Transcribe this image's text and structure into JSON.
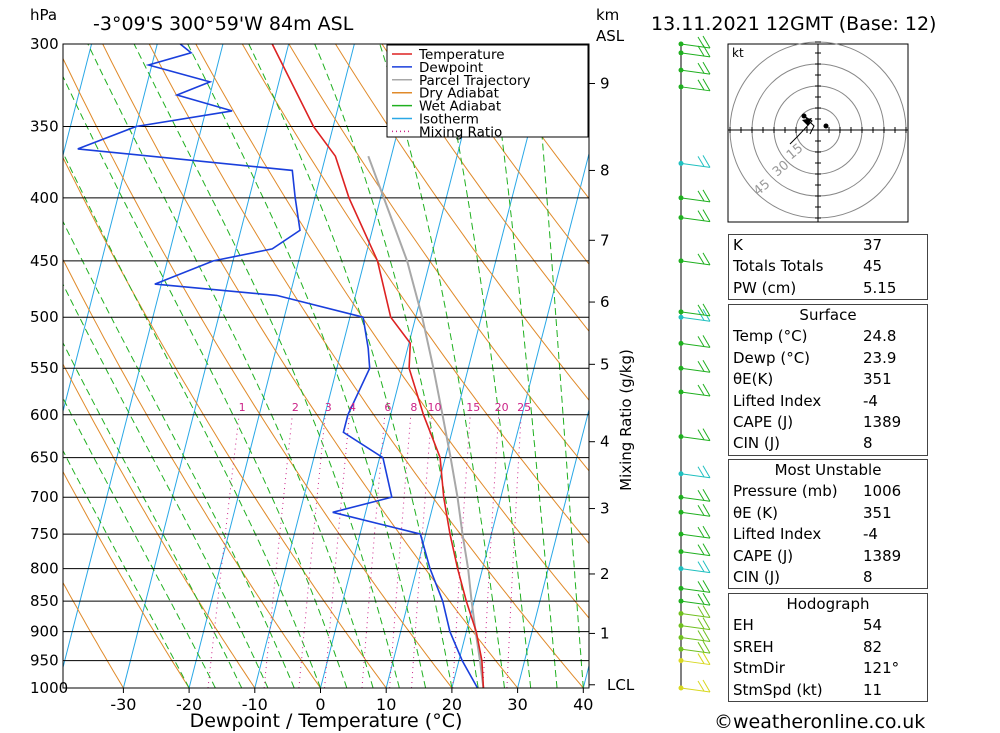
{
  "header": {
    "location": "-3°09'S  300°59'W  84m  ASL",
    "datetime": "13.11.2021  12GMT  (Base: 12)",
    "left_unit": "hPa",
    "right_unit_top": "km",
    "right_unit_bottom": "ASL"
  },
  "chart_data": {
    "type": "skew-t",
    "xlabel": "Dewpoint / Temperature (°C)",
    "right_axis_label": "Mixing Ratio (g/kg)",
    "x_ticks": [
      -30,
      -20,
      -10,
      0,
      10,
      20,
      30,
      40
    ],
    "pressure_levels": [
      300,
      350,
      400,
      450,
      500,
      550,
      600,
      650,
      700,
      750,
      800,
      850,
      900,
      950,
      1000
    ],
    "height_ticks_km": [
      {
        "label": "9",
        "p": 323
      },
      {
        "label": "8",
        "p": 380
      },
      {
        "label": "7",
        "p": 433
      },
      {
        "label": "6",
        "p": 486
      },
      {
        "label": "5",
        "p": 546
      },
      {
        "label": "4",
        "p": 631
      },
      {
        "label": "3",
        "p": 715
      },
      {
        "label": "2",
        "p": 808
      },
      {
        "label": "1",
        "p": 903
      },
      {
        "label": "LCL",
        "p": 994
      }
    ],
    "mixing_ratio_labels": [
      "1",
      "2",
      "3",
      "4",
      "6",
      "8",
      "10",
      "15",
      "20",
      "25"
    ],
    "legend": [
      "Temperature",
      "Dewpoint",
      "Parcel Trajectory",
      "Dry Adiabat",
      "Wet Adiabat",
      "Isotherm",
      "Mixing Ratio"
    ],
    "colors": {
      "temperature": "#dd2222",
      "dewpoint": "#1a3fdc",
      "parcel": "#a8a8a8",
      "dry_adiabat": "#e08a2a",
      "wet_adiabat": "#20b020",
      "isotherm": "#2aa8e6",
      "mixing_ratio": "#cc2288"
    },
    "temperature": [
      {
        "p": 1000,
        "t": 24.8
      },
      {
        "p": 950,
        "t": 23.5
      },
      {
        "p": 900,
        "t": 21.5
      },
      {
        "p": 850,
        "t": 18.8
      },
      {
        "p": 800,
        "t": 16.2
      },
      {
        "p": 750,
        "t": 13.7
      },
      {
        "p": 700,
        "t": 11.3
      },
      {
        "p": 650,
        "t": 9.2
      },
      {
        "p": 600,
        "t": 5.0
      },
      {
        "p": 550,
        "t": 1.0
      },
      {
        "p": 525,
        "t": 0.2
      },
      {
        "p": 500,
        "t": -3.8
      },
      {
        "p": 450,
        "t": -8.0
      },
      {
        "p": 400,
        "t": -14.8
      },
      {
        "p": 370,
        "t": -18.5
      },
      {
        "p": 350,
        "t": -23.0
      },
      {
        "p": 300,
        "t": -32.5
      }
    ],
    "dewpoint": [
      {
        "p": 1000,
        "t": 23.9
      },
      {
        "p": 950,
        "t": 20.5
      },
      {
        "p": 900,
        "t": 17.5
      },
      {
        "p": 850,
        "t": 15.2
      },
      {
        "p": 800,
        "t": 12.0
      },
      {
        "p": 750,
        "t": 9.2
      },
      {
        "p": 720,
        "t": -5.0
      },
      {
        "p": 700,
        "t": 3.4
      },
      {
        "p": 650,
        "t": 0.5
      },
      {
        "p": 620,
        "t": -6.5
      },
      {
        "p": 600,
        "t": -6.5
      },
      {
        "p": 550,
        "t": -5.0
      },
      {
        "p": 530,
        "t": -6.0
      },
      {
        "p": 500,
        "t": -8.0
      },
      {
        "p": 480,
        "t": -22.0
      },
      {
        "p": 470,
        "t": -41.0
      },
      {
        "p": 450,
        "t": -33.0
      },
      {
        "p": 440,
        "t": -24.5
      },
      {
        "p": 425,
        "t": -21.0
      },
      {
        "p": 400,
        "t": -23.0
      },
      {
        "p": 380,
        "t": -24.5
      },
      {
        "p": 365,
        "t": -58.0
      },
      {
        "p": 350,
        "t": -50.0
      },
      {
        "p": 340,
        "t": -36.0
      },
      {
        "p": 330,
        "t": -45.0
      },
      {
        "p": 322,
        "t": -40.5
      },
      {
        "p": 312,
        "t": -50.5
      },
      {
        "p": 305,
        "t": -44.5
      },
      {
        "p": 300,
        "t": -46.5
      }
    ],
    "parcel": [
      {
        "p": 1000,
        "t": 24.8
      },
      {
        "p": 950,
        "t": 23.2
      },
      {
        "p": 900,
        "t": 21.4
      },
      {
        "p": 850,
        "t": 19.6
      },
      {
        "p": 800,
        "t": 17.8
      },
      {
        "p": 750,
        "t": 15.6
      },
      {
        "p": 700,
        "t": 13.4
      },
      {
        "p": 650,
        "t": 10.8
      },
      {
        "p": 600,
        "t": 7.9
      },
      {
        "p": 550,
        "t": 4.7
      },
      {
        "p": 500,
        "t": 1.0
      },
      {
        "p": 450,
        "t": -3.5
      },
      {
        "p": 400,
        "t": -9.5
      },
      {
        "p": 370,
        "t": -13.5
      }
    ]
  },
  "wind_barbs_pressures": [
    1000,
    950,
    930,
    910,
    890,
    870,
    850,
    830,
    800,
    775,
    750,
    720,
    700,
    670,
    625,
    575,
    550,
    525,
    500,
    495,
    450,
    415,
    400,
    375,
    325,
    315,
    305,
    300
  ],
  "hodograph": {
    "unit": "kt",
    "ring_labels": [
      "15",
      "30",
      "45"
    ]
  },
  "indices": [
    {
      "label": "K",
      "value": "37"
    },
    {
      "label": "Totals Totals",
      "value": "45"
    },
    {
      "label": "PW (cm)",
      "value": "5.15"
    }
  ],
  "surface": {
    "title": "Surface",
    "rows": [
      {
        "label": "Temp (°C)",
        "value": "24.8"
      },
      {
        "label": "Dewp (°C)",
        "value": "23.9"
      },
      {
        "label": "θE(K)",
        "value": "351"
      },
      {
        "label": "Lifted Index",
        "value": "-4"
      },
      {
        "label": "CAPE (J)",
        "value": "1389"
      },
      {
        "label": "CIN (J)",
        "value": "8"
      }
    ]
  },
  "most_unstable": {
    "title": "Most Unstable",
    "rows": [
      {
        "label": "Pressure (mb)",
        "value": "1006"
      },
      {
        "label": "θE (K)",
        "value": "351"
      },
      {
        "label": "Lifted Index",
        "value": "-4"
      },
      {
        "label": "CAPE (J)",
        "value": "1389"
      },
      {
        "label": "CIN (J)",
        "value": "8"
      }
    ]
  },
  "hodograph_table": {
    "title": "Hodograph",
    "rows": [
      {
        "label": "EH",
        "value": "54"
      },
      {
        "label": "SREH",
        "value": "82"
      },
      {
        "label": "StmDir",
        "value": "121°"
      },
      {
        "label": "StmSpd (kt)",
        "value": "11"
      }
    ]
  },
  "copyright": "©weatheronline.co.uk"
}
